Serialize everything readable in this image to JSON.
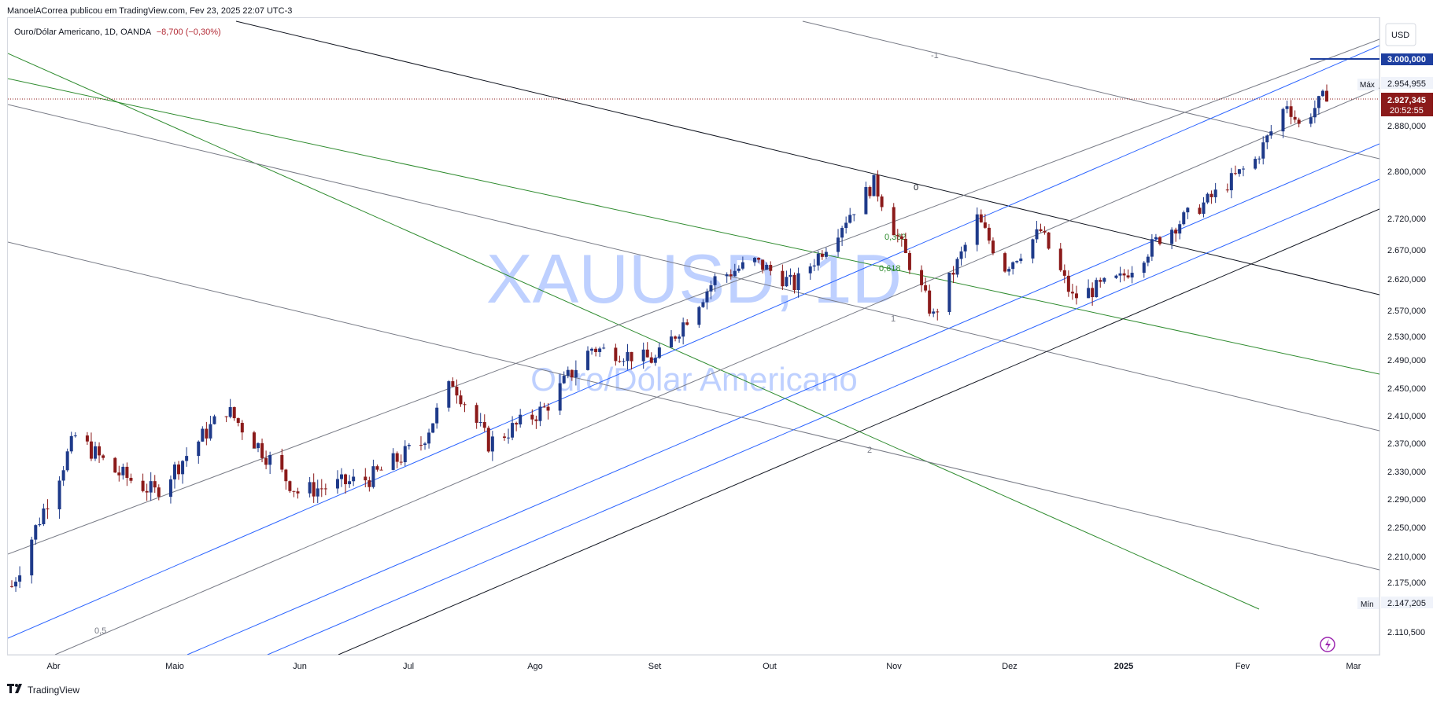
{
  "header": {
    "publisher": "ManoelACorrea publicou em TradingView.com, Fev 23, 2025 22:07 UTC-3"
  },
  "legend": {
    "symbol": "Ouro/Dólar Americano, 1D, OANDA",
    "change": "−8,700 (−0,30%)"
  },
  "watermark": {
    "ticker": "XAUUSD, 1D",
    "name": "Ouro/Dólar Americano"
  },
  "footer": {
    "brand": "TradingView",
    "logo": "tradingview-logo-icon"
  },
  "price_scale": {
    "currency": "USD",
    "alert_label": "3.000,000",
    "max_label": "Máx",
    "max_value": "2.954,955",
    "last_value": "2.927,345",
    "countdown": "20:52:55",
    "min_label": "Mín",
    "min_value": "2.147,205"
  },
  "fib_labels": {
    "l0": "0",
    "l0382": "0,382",
    "l0618": "0,618",
    "l1": "1",
    "l2": "2",
    "lm1": "-1",
    "l05": "0,5",
    "l1b": "1"
  },
  "colors": {
    "up": "#1e3a8a",
    "down": "#8b1a1a",
    "green_line": "#2e8b2e",
    "blue_line": "#2962ff",
    "alert": "#1e3fa0"
  },
  "chart_data": {
    "type": "candlestick",
    "symbol": "XAUUSD",
    "interval": "1D",
    "x_ticks": [
      "Abr",
      "Maio",
      "Jun",
      "Jul",
      "Ago",
      "Set",
      "Out",
      "Nov",
      "Dez",
      "2025",
      "Fev",
      "Mar"
    ],
    "y_ticks": [
      "2.880,000",
      "2.800,000",
      "2.720,000",
      "2.670,000",
      "2.620,000",
      "2.570,000",
      "2.530,000",
      "2.490,000",
      "2.450,000",
      "2.410,000",
      "2.370,000",
      "2.330,000",
      "2.290,000",
      "2.250,000",
      "2.210,000",
      "2.175,000",
      "2.110,500"
    ],
    "ylim": [
      2090,
      3020
    ],
    "last_price": 2927.345,
    "max": 2954.955,
    "min": 2147.205,
    "anchor_points": [
      {
        "date": "2024-03-27",
        "close": 2170
      },
      {
        "date": "2024-04-12",
        "close": 2380
      },
      {
        "date": "2024-04-22",
        "close": 2330
      },
      {
        "date": "2024-05-02",
        "close": 2300
      },
      {
        "date": "2024-05-20",
        "close": 2420
      },
      {
        "date": "2024-06-07",
        "close": 2300
      },
      {
        "date": "2024-06-25",
        "close": 2320
      },
      {
        "date": "2024-07-08",
        "close": 2370
      },
      {
        "date": "2024-07-16",
        "close": 2460
      },
      {
        "date": "2024-07-25",
        "close": 2370
      },
      {
        "date": "2024-08-08",
        "close": 2420
      },
      {
        "date": "2024-08-20",
        "close": 2510
      },
      {
        "date": "2024-09-05",
        "close": 2490
      },
      {
        "date": "2024-09-20",
        "close": 2620
      },
      {
        "date": "2024-09-30",
        "close": 2650
      },
      {
        "date": "2024-10-10",
        "close": 2610
      },
      {
        "date": "2024-10-30",
        "close": 2780
      },
      {
        "date": "2024-11-07",
        "close": 2660
      },
      {
        "date": "2024-11-14",
        "close": 2560
      },
      {
        "date": "2024-11-25",
        "close": 2720
      },
      {
        "date": "2024-12-02",
        "close": 2640
      },
      {
        "date": "2024-12-11",
        "close": 2700
      },
      {
        "date": "2024-12-19",
        "close": 2590
      },
      {
        "date": "2024-12-31",
        "close": 2620
      },
      {
        "date": "2025-01-10",
        "close": 2690
      },
      {
        "date": "2025-01-22",
        "close": 2750
      },
      {
        "date": "2025-02-03",
        "close": 2820
      },
      {
        "date": "2025-02-11",
        "close": 2920
      },
      {
        "date": "2025-02-14",
        "close": 2880
      },
      {
        "date": "2025-02-21",
        "close": 2936
      }
    ]
  }
}
